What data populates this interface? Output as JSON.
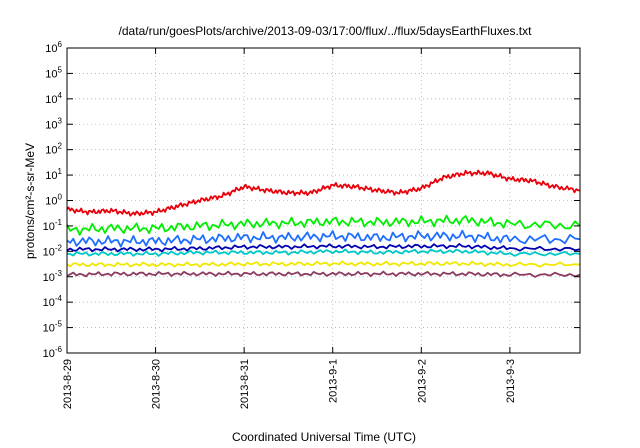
{
  "chart_data": {
    "type": "line",
    "title": "/data/run/goesPlots/archive/2013-09-03/17:00/flux/../flux/5daysEarthFluxes.txt",
    "xlabel": "Coordinated Universal Time (UTC)",
    "ylabel": "protons/cm²-s-sr-MeV",
    "yscale": "log",
    "ylim": [
      1e-06,
      1000000.0
    ],
    "y_ticks": [
      {
        "value": -6,
        "base": "10",
        "exp": "-6"
      },
      {
        "value": -5,
        "base": "10",
        "exp": "-5"
      },
      {
        "value": -4,
        "base": "10",
        "exp": "-4"
      },
      {
        "value": -3,
        "base": "10",
        "exp": "-3"
      },
      {
        "value": -2,
        "base": "10",
        "exp": "-2"
      },
      {
        "value": -1,
        "base": "10",
        "exp": "-1"
      },
      {
        "value": 0,
        "base": "10",
        "exp": "0"
      },
      {
        "value": 1,
        "base": "10",
        "exp": "1"
      },
      {
        "value": 2,
        "base": "10",
        "exp": "2"
      },
      {
        "value": 3,
        "base": "10",
        "exp": "3"
      },
      {
        "value": 4,
        "base": "10",
        "exp": "4"
      },
      {
        "value": 5,
        "base": "10",
        "exp": "5"
      },
      {
        "value": 6,
        "base": "10",
        "exp": "6"
      }
    ],
    "xlim": [
      "2013-08-29",
      "2013-09-03T19:00"
    ],
    "x_ticks": [
      "2013-8-29",
      "2013-8-30",
      "2013-8-31",
      "2013-9-1",
      "2013-9-2",
      "2013-9-3"
    ],
    "grid": true,
    "series": [
      {
        "color": "#e8000b",
        "values": [
          [
            "2013-08-29T00:00",
            0.45
          ],
          [
            "2013-08-29T06:00",
            0.35
          ],
          [
            "2013-08-29T12:00",
            0.4
          ],
          [
            "2013-08-29T18:00",
            0.3
          ],
          [
            "2013-08-30T00:00",
            0.35
          ],
          [
            "2013-08-30T06:00",
            0.6
          ],
          [
            "2013-08-30T12:00",
            1.0
          ],
          [
            "2013-08-30T18:00",
            1.5
          ],
          [
            "2013-08-31T00:00",
            3.5
          ],
          [
            "2013-08-31T06:00",
            2.5
          ],
          [
            "2013-08-31T12:00",
            2.0
          ],
          [
            "2013-08-31T18:00",
            2.0
          ],
          [
            "2013-09-01T00:00",
            4.0
          ],
          [
            "2013-09-01T06:00",
            3.5
          ],
          [
            "2013-09-01T12:00",
            2.5
          ],
          [
            "2013-09-01T18:00",
            2.0
          ],
          [
            "2013-09-02T00:00",
            3.0
          ],
          [
            "2013-09-02T06:00",
            8.0
          ],
          [
            "2013-09-02T12:00",
            12.0
          ],
          [
            "2013-09-02T18:00",
            12.0
          ],
          [
            "2013-09-03T00:00",
            7.0
          ],
          [
            "2013-09-03T06:00",
            6.0
          ],
          [
            "2013-09-03T12:00",
            3.5
          ],
          [
            "2013-09-03T19:00",
            2.5
          ]
        ]
      },
      {
        "color": "#00ee00",
        "values": [
          [
            "2013-08-29T00:00",
            0.07
          ],
          [
            "2013-08-29T12:00",
            0.08
          ],
          [
            "2013-08-30T00:00",
            0.08
          ],
          [
            "2013-08-30T12:00",
            0.1
          ],
          [
            "2013-08-31T00:00",
            0.12
          ],
          [
            "2013-08-31T12:00",
            0.13
          ],
          [
            "2013-09-01T00:00",
            0.15
          ],
          [
            "2013-09-01T12:00",
            0.14
          ],
          [
            "2013-09-02T00:00",
            0.15
          ],
          [
            "2013-09-02T12:00",
            0.17
          ],
          [
            "2013-09-03T00:00",
            0.12
          ],
          [
            "2013-09-03T19:00",
            0.1
          ]
        ]
      },
      {
        "color": "#1e6eff",
        "values": [
          [
            "2013-08-29T00:00",
            0.025
          ],
          [
            "2013-08-29T12:00",
            0.025
          ],
          [
            "2013-08-30T00:00",
            0.025
          ],
          [
            "2013-08-30T12:00",
            0.03
          ],
          [
            "2013-08-31T00:00",
            0.035
          ],
          [
            "2013-08-31T12:00",
            0.035
          ],
          [
            "2013-09-01T00:00",
            0.04
          ],
          [
            "2013-09-01T12:00",
            0.035
          ],
          [
            "2013-09-02T00:00",
            0.04
          ],
          [
            "2013-09-02T12:00",
            0.04
          ],
          [
            "2013-09-03T00:00",
            0.03
          ],
          [
            "2013-09-03T19:00",
            0.03
          ]
        ]
      },
      {
        "color": "#0000b0",
        "values": [
          [
            "2013-08-29T00:00",
            0.012
          ],
          [
            "2013-08-29T12:00",
            0.012
          ],
          [
            "2013-08-30T00:00",
            0.012
          ],
          [
            "2013-08-30T12:00",
            0.013
          ],
          [
            "2013-08-31T00:00",
            0.015
          ],
          [
            "2013-08-31T12:00",
            0.015
          ],
          [
            "2013-09-01T00:00",
            0.016
          ],
          [
            "2013-09-01T12:00",
            0.015
          ],
          [
            "2013-09-02T00:00",
            0.016
          ],
          [
            "2013-09-02T12:00",
            0.016
          ],
          [
            "2013-09-03T00:00",
            0.013
          ],
          [
            "2013-09-03T19:00",
            0.012
          ]
        ]
      },
      {
        "color": "#00c8c8",
        "values": [
          [
            "2013-08-29T00:00",
            0.008
          ],
          [
            "2013-08-29T12:00",
            0.008
          ],
          [
            "2013-08-30T00:00",
            0.008
          ],
          [
            "2013-08-30T12:00",
            0.009
          ],
          [
            "2013-08-31T00:00",
            0.009
          ],
          [
            "2013-08-31T12:00",
            0.009
          ],
          [
            "2013-09-01T00:00",
            0.01
          ],
          [
            "2013-09-01T12:00",
            0.009
          ],
          [
            "2013-09-02T00:00",
            0.01
          ],
          [
            "2013-09-02T12:00",
            0.01
          ],
          [
            "2013-09-03T00:00",
            0.008
          ],
          [
            "2013-09-03T19:00",
            0.008
          ]
        ]
      },
      {
        "color": "#f0e800",
        "values": [
          [
            "2013-08-29T00:00",
            0.003
          ],
          [
            "2013-08-29T12:00",
            0.003
          ],
          [
            "2013-08-30T00:00",
            0.003
          ],
          [
            "2013-08-30T12:00",
            0.003
          ],
          [
            "2013-08-31T00:00",
            0.0032
          ],
          [
            "2013-08-31T12:00",
            0.0032
          ],
          [
            "2013-09-01T00:00",
            0.0033
          ],
          [
            "2013-09-01T12:00",
            0.0032
          ],
          [
            "2013-09-02T00:00",
            0.0033
          ],
          [
            "2013-09-02T12:00",
            0.0033
          ],
          [
            "2013-09-03T00:00",
            0.003
          ],
          [
            "2013-09-03T19:00",
            0.003
          ]
        ]
      },
      {
        "color": "#8b3a62",
        "values": [
          [
            "2013-08-29T00:00",
            0.0012
          ],
          [
            "2013-08-29T12:00",
            0.0013
          ],
          [
            "2013-08-30T00:00",
            0.0013
          ],
          [
            "2013-08-30T12:00",
            0.0013
          ],
          [
            "2013-08-31T00:00",
            0.0013
          ],
          [
            "2013-08-31T12:00",
            0.0013
          ],
          [
            "2013-09-01T00:00",
            0.0013
          ],
          [
            "2013-09-01T12:00",
            0.0013
          ],
          [
            "2013-09-02T00:00",
            0.0013
          ],
          [
            "2013-09-02T12:00",
            0.0013
          ],
          [
            "2013-09-03T00:00",
            0.0012
          ],
          [
            "2013-09-03T19:00",
            0.0012
          ]
        ]
      }
    ]
  }
}
